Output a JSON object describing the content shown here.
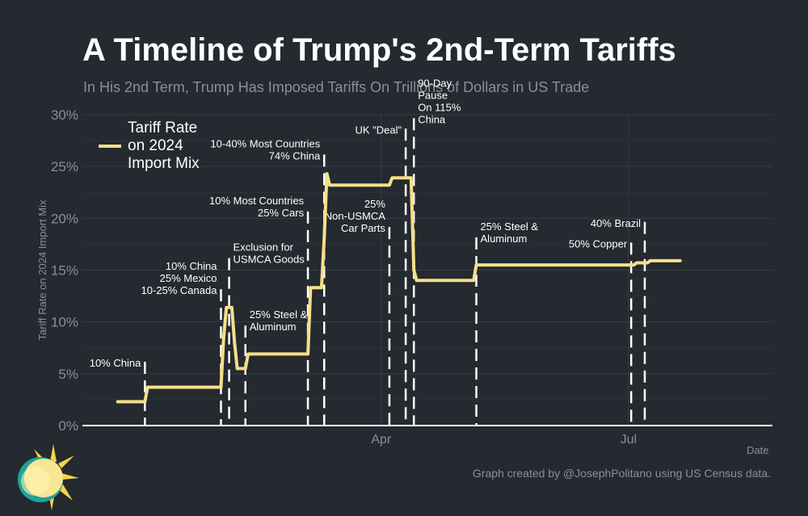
{
  "title": "A Timeline of Trump's 2nd-Term Tariffs",
  "subtitle": "In His 2nd Term, Trump Has Imposed Tariffs On Trillions of Dollars in US Trade",
  "credit": "Graph created by @JosephPolitano using US Census data.",
  "colors": {
    "background": "#252930",
    "line": "#f4e087",
    "grid": "#373c45",
    "axis_text": "#8a8f98",
    "annotation": "#ffffff"
  },
  "chart_data": {
    "type": "line",
    "title": "A Timeline of Trump's 2nd-Term Tariffs",
    "xlabel": "Date",
    "ylabel": "Tariff Rate on 2024 Import Mix",
    "x_unit": "day of 2025",
    "xlim": [
      -20,
      234
    ],
    "ylim": [
      0,
      30
    ],
    "y_ticks": [
      0,
      5,
      10,
      15,
      20,
      25,
      30
    ],
    "y_tick_labels": [
      "0%",
      "5%",
      "10%",
      "15%",
      "20%",
      "25%",
      "30%"
    ],
    "x_ticks": [
      {
        "x": 90,
        "label": "Apr"
      },
      {
        "x": 181,
        "label": "Jul"
      }
    ],
    "legend": {
      "position": "top-left",
      "label": "Tariff Rate\non 2024\nImport Mix"
    },
    "series": [
      {
        "name": "Tariff Rate on 2024 Import Mix",
        "points": [
          [
            -7,
            2.3
          ],
          [
            3,
            2.3
          ],
          [
            4,
            3.7
          ],
          [
            31,
            3.7
          ],
          [
            32,
            8.5
          ],
          [
            33,
            11.4
          ],
          [
            35,
            11.4
          ],
          [
            36,
            8.0
          ],
          [
            37,
            5.5
          ],
          [
            40,
            5.5
          ],
          [
            41,
            6.9
          ],
          [
            63,
            6.9
          ],
          [
            64,
            13.3
          ],
          [
            68,
            13.3
          ],
          [
            69,
            18.0
          ],
          [
            70,
            24.3
          ],
          [
            71,
            23.2
          ],
          [
            93,
            23.2
          ],
          [
            94,
            23.9
          ],
          [
            101,
            23.9
          ],
          [
            102,
            15.0
          ],
          [
            103,
            14.0
          ],
          [
            124,
            14.0
          ],
          [
            125,
            15.5
          ],
          [
            183,
            15.5
          ],
          [
            184,
            15.7
          ],
          [
            188,
            15.7
          ],
          [
            189,
            15.9
          ],
          [
            200,
            15.9
          ]
        ]
      }
    ],
    "events": [
      {
        "x": 3,
        "label": "10% China",
        "align": "right",
        "y": 6.0
      },
      {
        "x": 31,
        "label": "10% China\n25% Mexico\n10-25% Canada",
        "align": "right",
        "y": 13.0
      },
      {
        "x": 34,
        "label": "Exclusion for\nUSMCA Goods",
        "align": "left",
        "y": 16.0
      },
      {
        "x": 40,
        "label": "25% Steel &\nAluminum",
        "align": "left",
        "y": 9.5
      },
      {
        "x": 63,
        "label": "10% Most Countries\n25% Cars",
        "align": "right",
        "y": 20.5
      },
      {
        "x": 69,
        "label": "10-40% Most Countries\n74% China",
        "align": "right",
        "y": 26.0
      },
      {
        "x": 93,
        "label": "25%\nNon-USMCA\nCar Parts",
        "align": "right",
        "y": 19.0
      },
      {
        "x": 99,
        "label": "UK \"Deal\"",
        "align": "right",
        "y": 28.5
      },
      {
        "x": 102,
        "label": "90-Day\nPause\nOn 115%\nChina",
        "align": "left",
        "y": 29.5
      },
      {
        "x": 125,
        "label": "25% Steel &\nAluminum",
        "align": "left",
        "y": 18.0
      },
      {
        "x": 182,
        "label": "50% Copper",
        "align": "right",
        "y": 17.5
      },
      {
        "x": 187,
        "label": "40% Brazil",
        "align": "right",
        "y": 19.5
      }
    ]
  }
}
